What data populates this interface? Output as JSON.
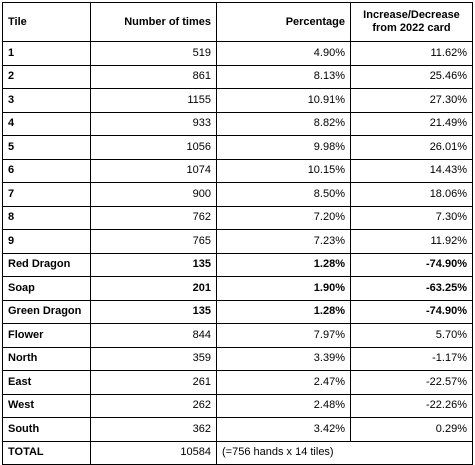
{
  "headers": {
    "tile": "Tile",
    "times": "Number of times",
    "percentage": "Percentage",
    "change": "Increase/Decrease from 2022 card"
  },
  "rows": [
    {
      "tile": "1",
      "times": "519",
      "pct": "4.90%",
      "change": "11.62%",
      "bold": false
    },
    {
      "tile": "2",
      "times": "861",
      "pct": "8.13%",
      "change": "25.46%",
      "bold": false
    },
    {
      "tile": "3",
      "times": "1155",
      "pct": "10.91%",
      "change": "27.30%",
      "bold": false
    },
    {
      "tile": "4",
      "times": "933",
      "pct": "8.82%",
      "change": "21.49%",
      "bold": false
    },
    {
      "tile": "5",
      "times": "1056",
      "pct": "9.98%",
      "change": "26.01%",
      "bold": false
    },
    {
      "tile": "6",
      "times": "1074",
      "pct": "10.15%",
      "change": "14.43%",
      "bold": false
    },
    {
      "tile": "7",
      "times": "900",
      "pct": "8.50%",
      "change": "18.06%",
      "bold": false
    },
    {
      "tile": "8",
      "times": "762",
      "pct": "7.20%",
      "change": "7.30%",
      "bold": false
    },
    {
      "tile": "9",
      "times": "765",
      "pct": "7.23%",
      "change": "11.92%",
      "bold": false
    },
    {
      "tile": "Red Dragon",
      "times": "135",
      "pct": "1.28%",
      "change": "-74.90%",
      "bold": true
    },
    {
      "tile": "Soap",
      "times": "201",
      "pct": "1.90%",
      "change": "-63.25%",
      "bold": true
    },
    {
      "tile": "Green Dragon",
      "times": "135",
      "pct": "1.28%",
      "change": "-74.90%",
      "bold": true
    },
    {
      "tile": "Flower",
      "times": "844",
      "pct": "7.97%",
      "change": "5.70%",
      "bold": false
    },
    {
      "tile": "North",
      "times": "359",
      "pct": "3.39%",
      "change": "-1.17%",
      "bold": false
    },
    {
      "tile": "East",
      "times": "261",
      "pct": "2.47%",
      "change": "-22.57%",
      "bold": false
    },
    {
      "tile": "West",
      "times": "262",
      "pct": "2.48%",
      "change": "-22.26%",
      "bold": false
    },
    {
      "tile": "South",
      "times": "362",
      "pct": "3.42%",
      "change": "0.29%",
      "bold": false
    }
  ],
  "total": {
    "label": "TOTAL",
    "times": "10584",
    "note": "(=756 hands x 14 tiles)"
  }
}
